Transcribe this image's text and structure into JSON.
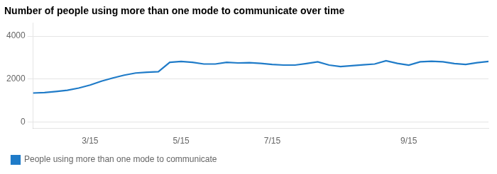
{
  "chart_data": {
    "type": "line",
    "title": "Number of people using more than one mode to communicate over time",
    "categories": [
      null,
      null,
      null,
      null,
      null,
      "3/15",
      null,
      null,
      null,
      null,
      null,
      null,
      null,
      "5/15",
      null,
      null,
      null,
      null,
      null,
      null,
      null,
      "7/15",
      null,
      null,
      null,
      null,
      null,
      null,
      null,
      null,
      null,
      null,
      null,
      "9/15",
      null,
      null,
      null,
      null,
      null,
      null,
      null
    ],
    "series": [
      {
        "name": "People using more than one mode to communicate",
        "color": "#1F7BC8",
        "values": [
          1350,
          1370,
          1420,
          1480,
          1580,
          1720,
          1900,
          2050,
          2180,
          2280,
          2320,
          2340,
          2780,
          2820,
          2780,
          2700,
          2700,
          2780,
          2750,
          2760,
          2730,
          2680,
          2650,
          2650,
          2720,
          2800,
          2650,
          2580,
          2620,
          2660,
          2700,
          2850,
          2730,
          2650,
          2800,
          2830,
          2800,
          2720,
          2680,
          2760,
          2820
        ]
      }
    ],
    "ylim": [
      -300,
      4600
    ],
    "yticks": [
      0,
      2000,
      4000
    ],
    "grid": true,
    "legend": "lower left"
  }
}
